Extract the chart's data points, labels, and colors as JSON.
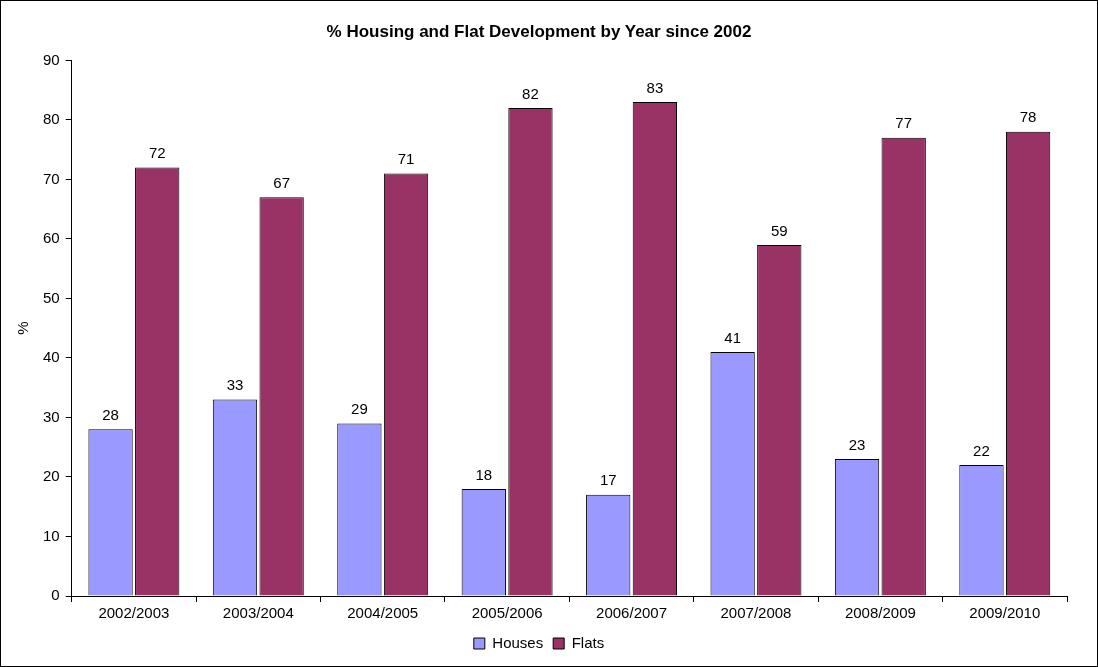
{
  "chart_data": {
    "type": "bar",
    "title": "% Housing and Flat Development by Year since 2002",
    "ylabel": "%",
    "categories": [
      "2002/2003",
      "2003/2004",
      "2004/2005",
      "2005/2006",
      "2006/2007",
      "2007/2008",
      "2008/2009",
      "2009/2010"
    ],
    "series": [
      {
        "name": "Houses",
        "color": "#9999ff",
        "values": [
          28,
          33,
          29,
          18,
          17,
          41,
          23,
          22
        ]
      },
      {
        "name": "Flats",
        "color": "#993366",
        "values": [
          72,
          67,
          71,
          82,
          83,
          59,
          77,
          78
        ]
      }
    ],
    "ylim": [
      0,
      90
    ],
    "yticks": [
      0,
      10,
      20,
      30,
      40,
      50,
      60,
      70,
      80,
      90
    ],
    "grid": false,
    "legend": "bottom",
    "data_labels": true
  }
}
